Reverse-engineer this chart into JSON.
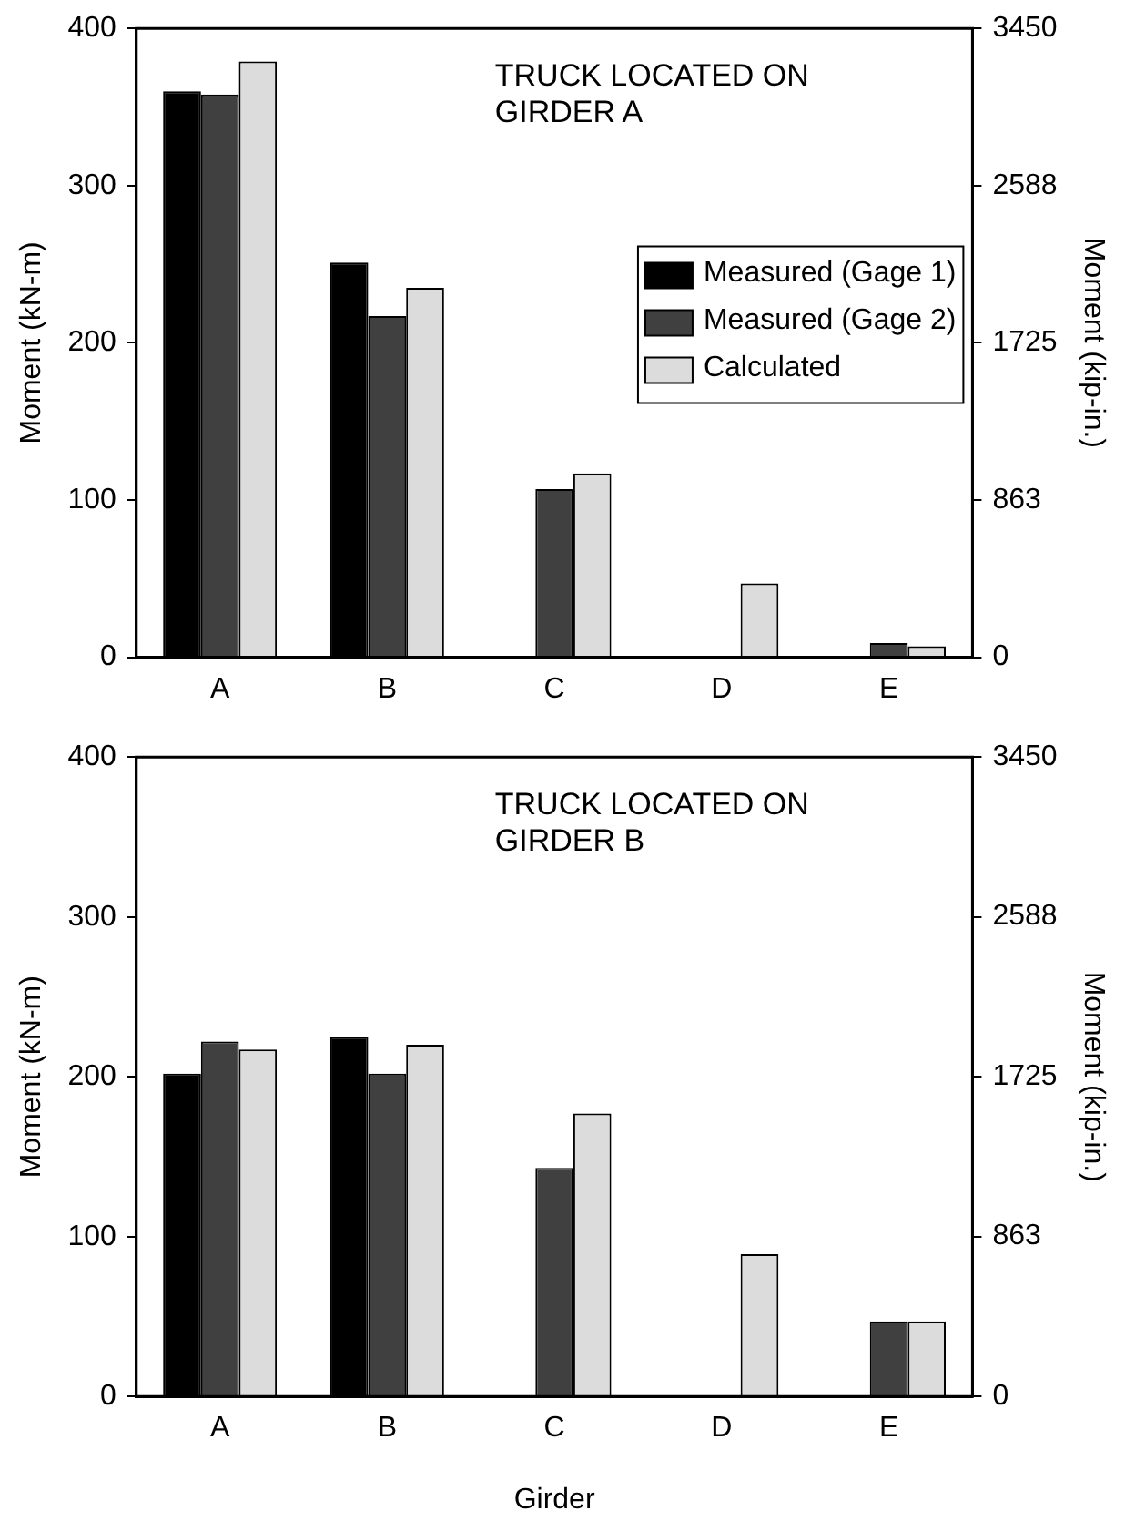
{
  "chart_data": [
    {
      "type": "bar",
      "ylabel": "Moment (kN-m)",
      "y2label": "Moment (kip-in.)",
      "categories": [
        "A",
        "B",
        "C",
        "D",
        "E"
      ],
      "series": [
        {
          "name": "Measured (Gage 1)",
          "color": "#000000",
          "values": [
            360,
            251,
            null,
            null,
            null
          ]
        },
        {
          "name": "Measured (Gage 2)",
          "color": "#404040",
          "values": [
            358,
            217,
            107,
            null,
            9
          ]
        },
        {
          "name": "Calculated",
          "color": "#dcdcdc",
          "values": [
            379,
            235,
            117,
            47,
            7
          ]
        }
      ],
      "ylim": [
        0,
        400
      ],
      "yticks": [
        0,
        100,
        200,
        300,
        400
      ],
      "y2lim": [
        0,
        3450
      ],
      "y2ticks": [
        0,
        863,
        1725,
        2588,
        3450
      ],
      "grid": false,
      "legend": "right",
      "annotations": [
        "TRUCK LOCATED ON GIRDER A"
      ]
    },
    {
      "type": "bar",
      "ylabel": "Moment (kN-m)",
      "y2label": "Moment (kip-in.)",
      "xlabel": "Girder",
      "categories": [
        "A",
        "B",
        "C",
        "D",
        "E"
      ],
      "series": [
        {
          "color": "#000000",
          "values": [
            202,
            225,
            null,
            null,
            null
          ]
        },
        {
          "color": "#404040",
          "values": [
            222,
            202,
            143,
            null,
            47
          ]
        },
        {
          "color": "#dcdcdc",
          "values": [
            217,
            220,
            177,
            89,
            47
          ]
        }
      ],
      "ylim": [
        0,
        400
      ],
      "yticks": [
        0,
        100,
        200,
        300,
        400
      ],
      "y2lim": [
        0,
        3450
      ],
      "y2ticks": [
        0,
        863,
        1725,
        2588,
        3450
      ],
      "grid": false,
      "legend": false,
      "annotations": [
        "TRUCK LOCATED ON GIRDER B"
      ]
    }
  ]
}
